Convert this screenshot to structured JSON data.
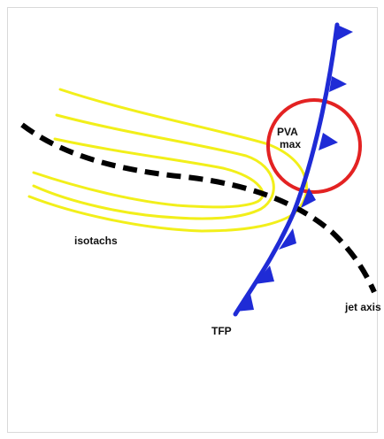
{
  "diagram": {
    "labels": {
      "pva_line1": "PVA",
      "pva_line2": "max",
      "isotachs": "isotachs",
      "jet_axis": "jet axis",
      "tfp": "TFP"
    },
    "colors": {
      "background": "#ffffff",
      "border": "#d9d9d9",
      "isotach": "#f2ef1a",
      "jet_axis": "#000000",
      "front": "#1f2bd6",
      "pva_circle": "#e32222",
      "text": "#111111"
    },
    "elements": {
      "isotach_count": 3,
      "front_barb_count": 7,
      "front_style": "cold-front-triangles"
    }
  }
}
